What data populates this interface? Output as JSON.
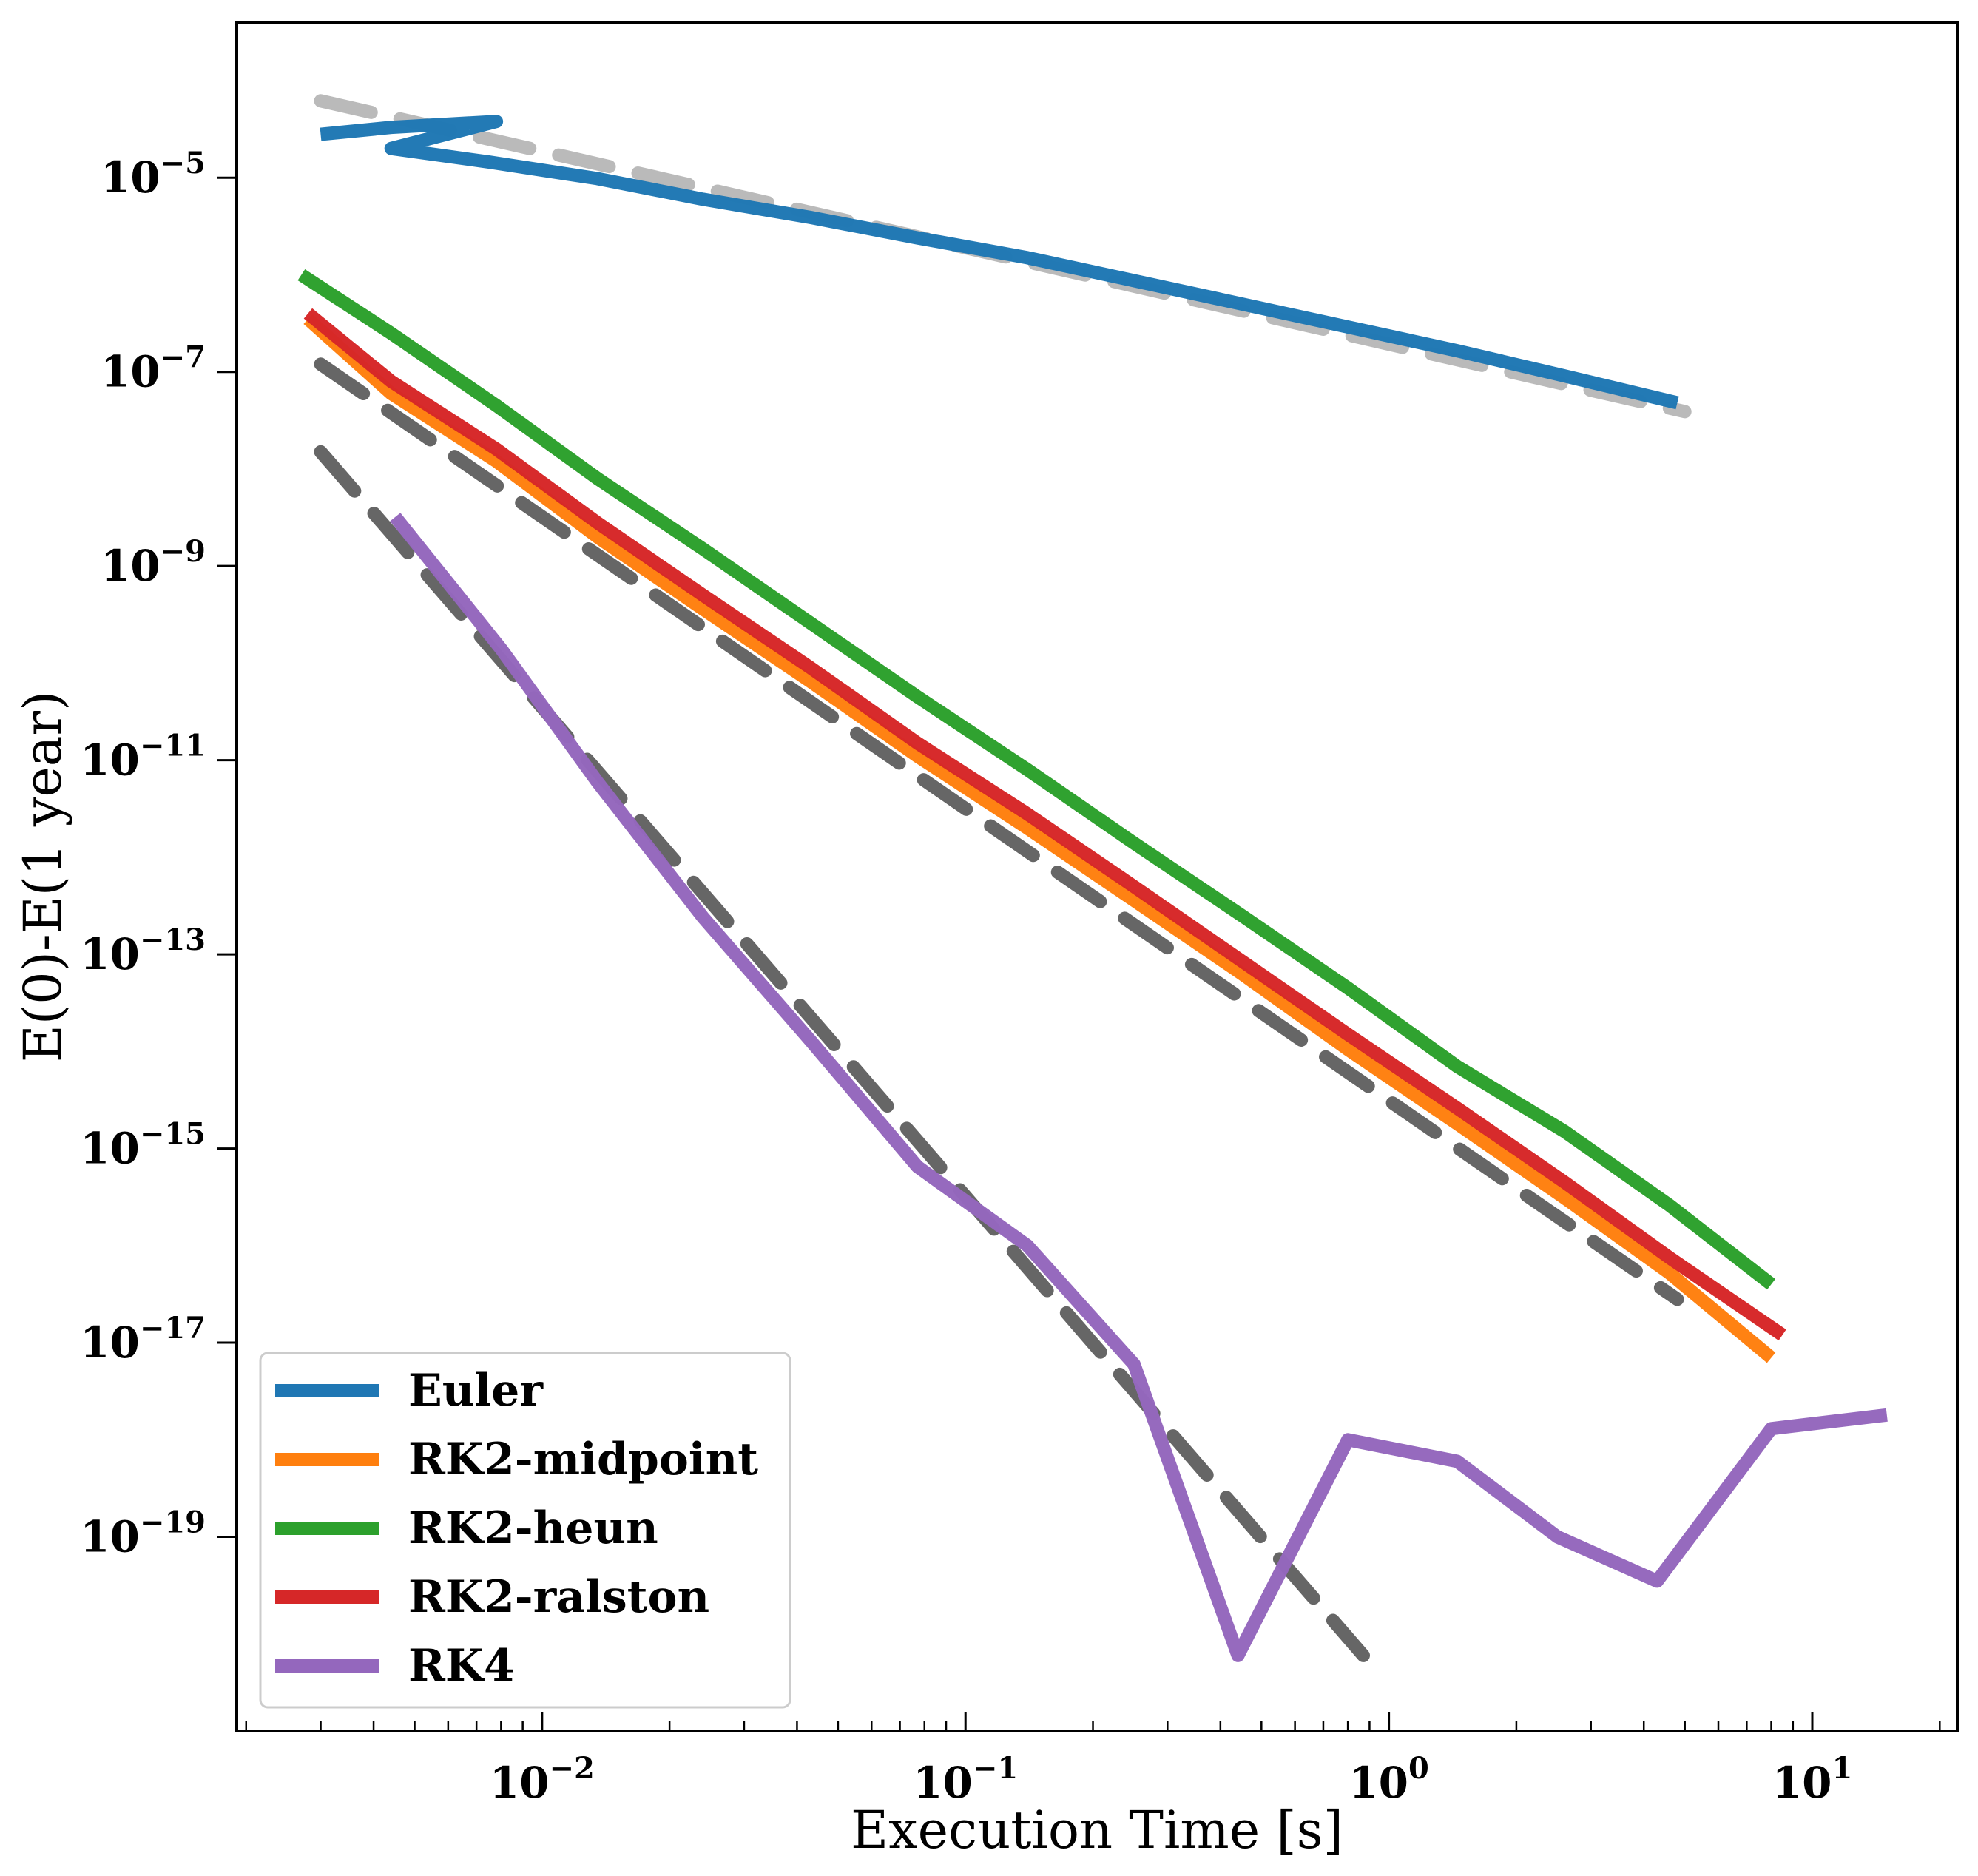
{
  "chart_data": {
    "type": "line",
    "xlabel": "Execution Time [s]",
    "ylabel": "E(0)-E(1 year)",
    "xscale": "log",
    "yscale": "log",
    "xlim": [
      0.0019,
      22
    ],
    "ylim": [
      1e-21,
      0.0004
    ],
    "xticks": [
      {
        "value": 0.01,
        "base": "10",
        "exp": "−2"
      },
      {
        "value": 0.1,
        "base": "10",
        "exp": "−1"
      },
      {
        "value": 1,
        "base": "10",
        "exp": "0"
      },
      {
        "value": 10,
        "base": "10",
        "exp": "1"
      }
    ],
    "yticks": [
      {
        "value": 1e-05,
        "base": "10",
        "exp": "−5"
      },
      {
        "value": 1e-07,
        "base": "10",
        "exp": "−7"
      },
      {
        "value": 1e-09,
        "base": "10",
        "exp": "−9"
      },
      {
        "value": 1e-11,
        "base": "10",
        "exp": "−11"
      },
      {
        "value": 1e-13,
        "base": "10",
        "exp": "−13"
      },
      {
        "value": 1e-15,
        "base": "10",
        "exp": "−15"
      },
      {
        "value": 1e-17,
        "base": "10",
        "exp": "−17"
      },
      {
        "value": 1e-19,
        "base": "10",
        "exp": "−19"
      }
    ],
    "grid": false,
    "legend_position": "lower-left",
    "series": [
      {
        "name": "Euler",
        "color": "#1f77b4",
        "x": [
          0.003,
          0.0044,
          0.0078,
          0.0044,
          0.0075,
          0.0135,
          0.024,
          0.043,
          0.077,
          0.14,
          0.25,
          0.45,
          0.8,
          1.45,
          2.6,
          4.8
        ],
        "y": [
          2.8e-05,
          3.3e-05,
          3.8e-05,
          2e-05,
          1.45e-05,
          9.8e-06,
          6e-06,
          3.9e-06,
          2.4e-06,
          1.5e-06,
          8.7e-07,
          5e-07,
          2.9e-07,
          1.65e-07,
          9.1e-08,
          4.8e-08
        ]
      },
      {
        "name": "RK2-midpoint",
        "color": "#ff7f0e",
        "x": [
          0.0028,
          0.0044,
          0.0078,
          0.0135,
          0.024,
          0.043,
          0.077,
          0.14,
          0.25,
          0.45,
          0.8,
          1.45,
          2.6,
          4.6,
          8.0
        ],
        "y": [
          3.5e-07,
          6e-08,
          1.2e-08,
          2e-09,
          3.6e-10,
          6.5e-11,
          1.1e-11,
          2e-12,
          3.6e-13,
          6.3e-14,
          1.05e-14,
          1.8e-15,
          3.1e-16,
          5.2e-17,
          7e-18
        ]
      },
      {
        "name": "RK2-heun",
        "color": "#2ca02c",
        "x": [
          0.0027,
          0.0044,
          0.0078,
          0.0135,
          0.024,
          0.043,
          0.077,
          0.14,
          0.25,
          0.45,
          0.8,
          1.45,
          2.6,
          4.6,
          8.0
        ],
        "y": [
          1e-06,
          2.5e-07,
          4.5e-08,
          8e-09,
          1.5e-09,
          2.6e-10,
          4.5e-11,
          8e-12,
          1.4e-12,
          2.5e-13,
          4.5e-14,
          7e-15,
          1.5e-15,
          2.6e-16,
          4e-17
        ]
      },
      {
        "name": "RK2-ralston",
        "color": "#d62728",
        "x": [
          0.0028,
          0.0044,
          0.0078,
          0.0135,
          0.024,
          0.043,
          0.077,
          0.14,
          0.25,
          0.45,
          0.8,
          1.45,
          2.6,
          4.6,
          8.5
        ],
        "y": [
          4e-07,
          8e-08,
          1.6e-08,
          2.8e-09,
          5e-10,
          9e-11,
          1.5e-11,
          2.8e-12,
          5e-13,
          8.5e-14,
          1.5e-14,
          2.6e-15,
          4.5e-16,
          7.5e-17,
          1.2e-17
        ]
      },
      {
        "name": "RK4",
        "color": "#9467bd",
        "x": [
          0.0045,
          0.008,
          0.0135,
          0.024,
          0.043,
          0.077,
          0.14,
          0.25,
          0.44,
          0.8,
          1.45,
          2.5,
          4.3,
          8.0,
          15.0
        ],
        "y": [
          3.2e-09,
          1.4e-10,
          6e-12,
          2.4e-13,
          1.3e-14,
          6.5e-16,
          1e-16,
          6e-18,
          6e-21,
          1e-18,
          6e-19,
          1e-19,
          3.5e-20,
          1.3e-18,
          1.8e-18
        ]
      }
    ],
    "reference_lines": [
      {
        "style": "dashed",
        "color": "#b3b3b3",
        "x": [
          0.003,
          5.0
        ],
        "y": [
          6.2e-05,
          3.9e-08
        ]
      },
      {
        "style": "dashed",
        "color": "#555555",
        "x": [
          0.003,
          4.8
        ],
        "y": [
          1.2e-07,
          2.8e-17
        ]
      },
      {
        "style": "dashed",
        "color": "#555555",
        "x": [
          0.003,
          0.87
        ],
        "y": [
          1.5e-08,
          6e-21
        ]
      }
    ]
  }
}
